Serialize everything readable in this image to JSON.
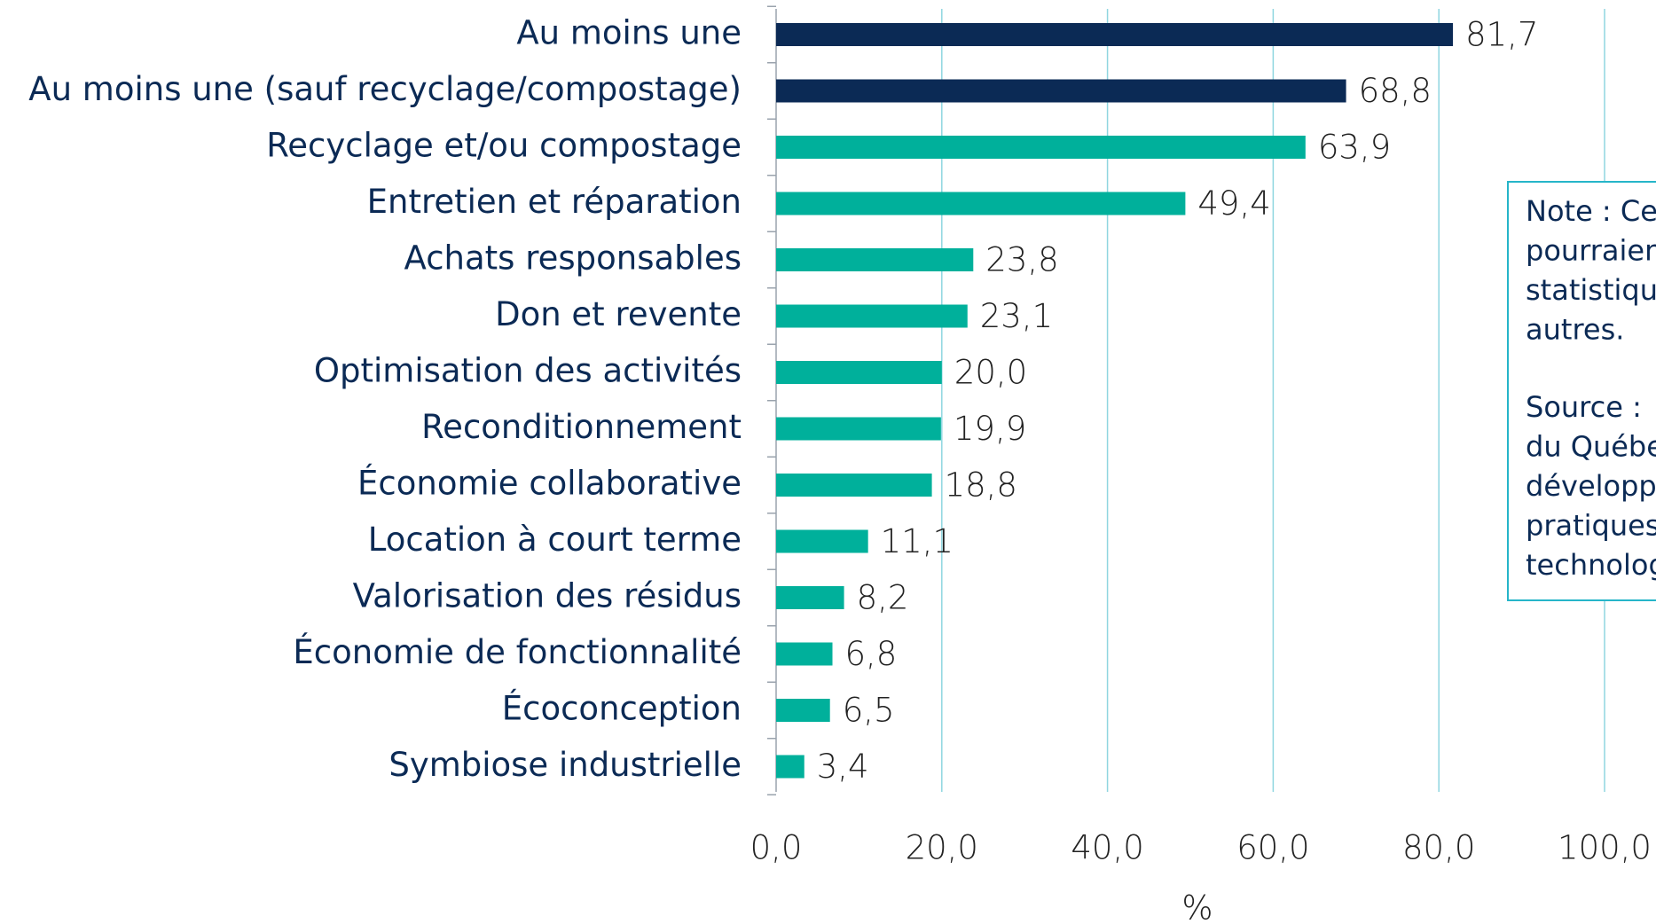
{
  "chart_data": {
    "type": "bar",
    "orientation": "horizontal",
    "categories": [
      "Au moins une",
      "Au moins une (sauf recyclage/compostage)",
      "Recyclage et/ou compostage",
      "Entretien et réparation",
      "Achats responsables",
      "Don et revente",
      "Optimisation des activités",
      "Reconditionnement",
      "Économie collaborative",
      "Location à court terme",
      "Valorisation des résidus",
      "Économie de fonctionnalité",
      "Écoconception",
      "Symbiose industrielle"
    ],
    "values": [
      81.7,
      68.8,
      63.9,
      49.4,
      23.8,
      23.1,
      20.0,
      19.9,
      18.8,
      11.1,
      8.2,
      6.8,
      6.5,
      3.4
    ],
    "value_labels": [
      "81,7",
      "68,8",
      "63,9",
      "49,4",
      "23,8",
      "23,1",
      "20,0",
      "19,9",
      "18,8",
      "11,1",
      "8,2",
      "6,8",
      "6,5",
      "3,4"
    ],
    "colors": [
      "#0b2a55",
      "#0b2a55",
      "#00b09b",
      "#00b09b",
      "#00b09b",
      "#00b09b",
      "#00b09b",
      "#00b09b",
      "#00b09b",
      "#00b09b",
      "#00b09b",
      "#00b09b",
      "#00b09b",
      "#00b09b"
    ],
    "xlim": [
      0,
      100
    ],
    "xticks": [
      {
        "value": 0,
        "label": "0,0"
      },
      {
        "value": 20,
        "label": "20,0"
      },
      {
        "value": 40,
        "label": "40,0"
      },
      {
        "value": 60,
        "label": "60,0"
      },
      {
        "value": 80,
        "label": "80,0"
      },
      {
        "value": 100,
        "label": "100,0"
      }
    ],
    "xlabel": "%",
    "grid": true,
    "note": [
      "Note : Ce",
      "pourraien",
      "statistiqu",
      "autres."
    ],
    "source": [
      "Source :",
      "du Québe",
      "développ",
      "pratiques",
      "technolog"
    ]
  }
}
